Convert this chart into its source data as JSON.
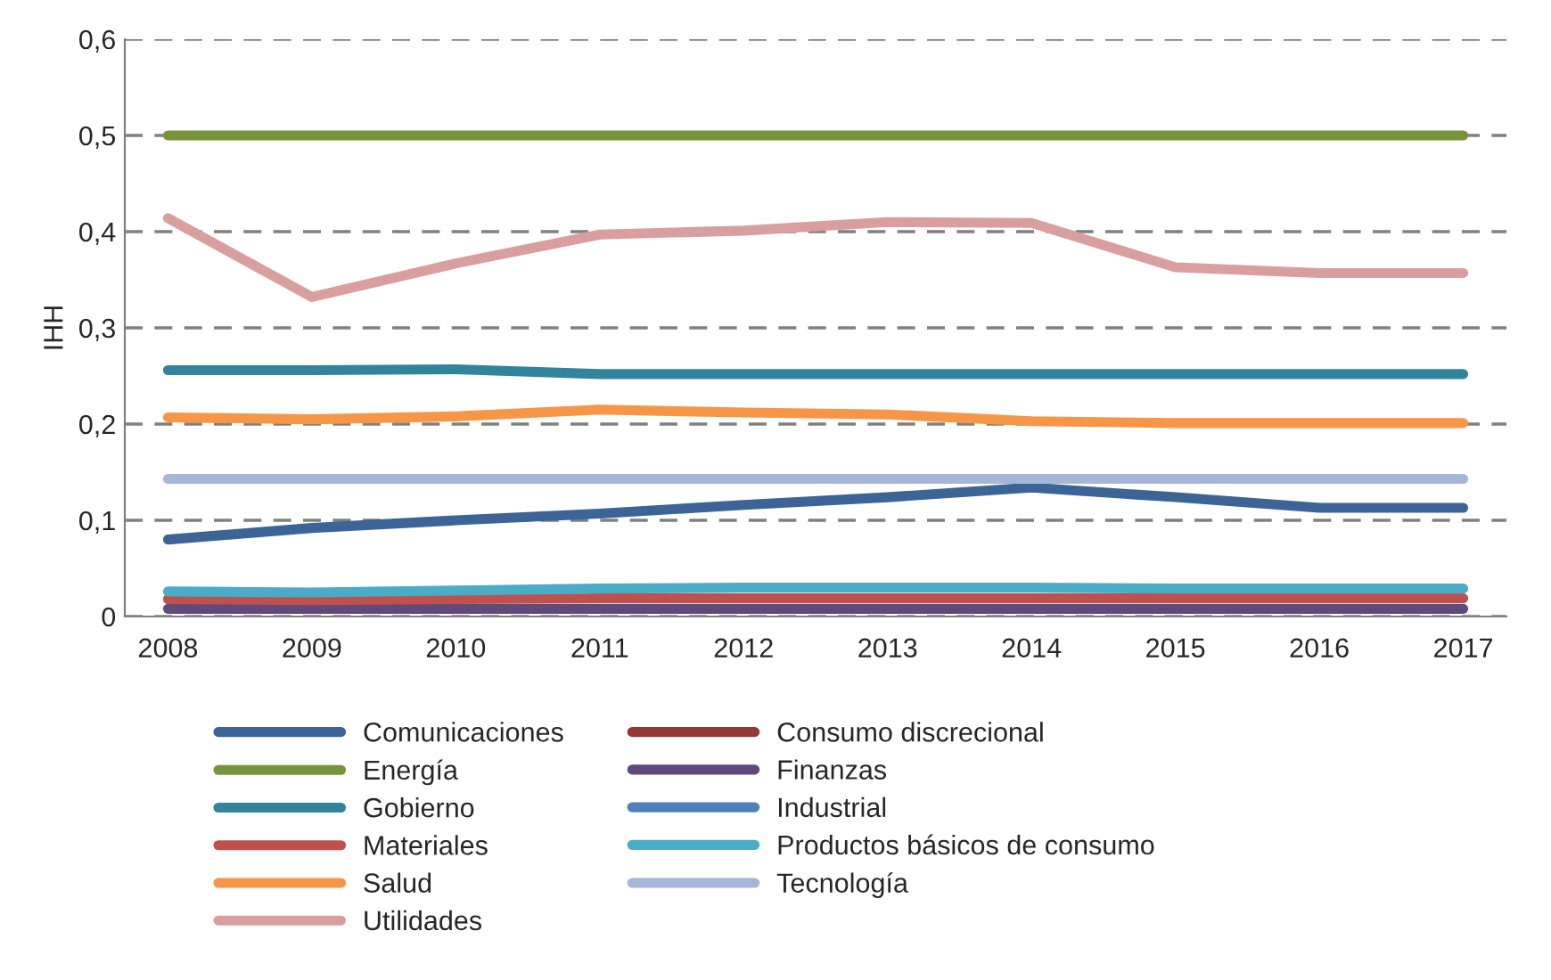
{
  "chart_data": {
    "type": "line",
    "ylabel": "IHH",
    "categories": [
      "2008",
      "2009",
      "2010",
      "2011",
      "2012",
      "2013",
      "2014",
      "2015",
      "2016",
      "2017"
    ],
    "series": [
      {
        "name": "Comunicaciones",
        "color": "#3c6496",
        "values": [
          0.08,
          0.092,
          0.1,
          0.107,
          0.116,
          0.124,
          0.134,
          0.124,
          0.113,
          0.113
        ]
      },
      {
        "name": "Consumo discrecional",
        "color": "#953735",
        "values": [
          null,
          null,
          null,
          null,
          null,
          null,
          null,
          null,
          null,
          null
        ]
      },
      {
        "name": "Energía",
        "color": "#77933c",
        "values": [
          0.5,
          0.5,
          0.5,
          0.5,
          0.5,
          0.5,
          0.5,
          0.5,
          0.5,
          0.5
        ]
      },
      {
        "name": "Finanzas",
        "color": "#604a7b",
        "values": [
          0.008,
          0.008,
          0.008,
          0.008,
          0.008,
          0.008,
          0.008,
          0.008,
          0.008,
          0.008
        ]
      },
      {
        "name": "Gobierno",
        "color": "#31849b",
        "values": [
          0.256,
          0.256,
          0.257,
          0.252,
          0.252,
          0.252,
          0.252,
          0.252,
          0.252,
          0.252
        ]
      },
      {
        "name": "Industrial",
        "color": "#4f81bd",
        "values": [
          null,
          null,
          null,
          null,
          null,
          null,
          null,
          null,
          null,
          null
        ]
      },
      {
        "name": "Materiales",
        "color": "#c0504d",
        "values": [
          0.018,
          0.017,
          0.018,
          0.019,
          0.019,
          0.019,
          0.019,
          0.019,
          0.019,
          0.019
        ]
      },
      {
        "name": "Productos básicos de consumo",
        "color": "#4bacc6",
        "values": [
          0.026,
          0.025,
          0.027,
          0.029,
          0.03,
          0.03,
          0.03,
          0.029,
          0.029,
          0.029
        ]
      },
      {
        "name": "Salud",
        "color": "#f79646",
        "values": [
          0.207,
          0.205,
          0.208,
          0.215,
          0.212,
          0.21,
          0.203,
          0.201,
          0.201,
          0.201
        ]
      },
      {
        "name": "Tecnología",
        "color": "#a5b6d8",
        "values": [
          0.143,
          0.143,
          0.143,
          0.143,
          0.143,
          0.143,
          0.143,
          0.143,
          0.143,
          0.143
        ]
      },
      {
        "name": "Utilidades",
        "color": "#d99e9e",
        "values": [
          0.414,
          0.332,
          0.367,
          0.397,
          0.401,
          0.41,
          0.409,
          0.363,
          0.357,
          0.357
        ]
      }
    ],
    "ylim": [
      0,
      0.6
    ],
    "yticks": [
      {
        "value": 0,
        "label": "0"
      },
      {
        "value": 0.1,
        "label": "0,1"
      },
      {
        "value": 0.2,
        "label": "0,2"
      },
      {
        "value": 0.3,
        "label": "0,3"
      },
      {
        "value": 0.4,
        "label": "0,4"
      },
      {
        "value": 0.5,
        "label": "0,5"
      },
      {
        "value": 0.6,
        "label": "0,6"
      }
    ],
    "grid": "y",
    "legend": "bottom",
    "marker": "none",
    "line_style": "solid"
  }
}
